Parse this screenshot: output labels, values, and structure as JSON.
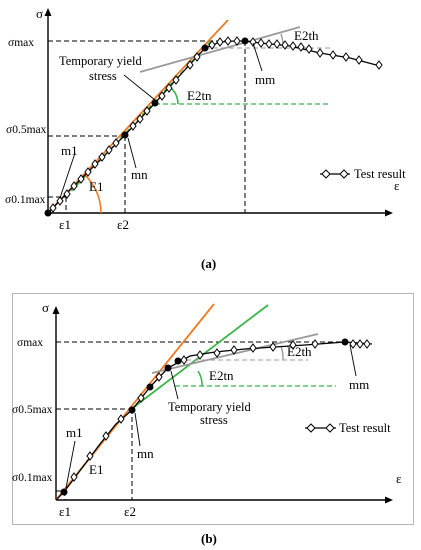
{
  "panel_a": {
    "caption": "(a)",
    "axis_y": "σ",
    "axis_x": "ε",
    "labels": {
      "sigma_max": "σmax",
      "sigma_05max": "σ0.5max",
      "sigma_01max": "σ0.1max",
      "eps1": "ε1",
      "eps2": "ε2",
      "m1": "m1",
      "mn": "mn",
      "mm": "mm",
      "E1": "E1",
      "E2tn": "E2tn",
      "E2th": "E2th",
      "temp_yield_line1": "Temporary yield",
      "temp_yield_line2": "stress",
      "legend": "Test result"
    }
  },
  "panel_b": {
    "caption": "(b)",
    "axis_y": "σ",
    "axis_x": "ε",
    "labels": {
      "sigma_max": "σmax",
      "sigma_05max": "σ0.5max",
      "sigma_01max": "σ0.1max",
      "eps1": "ε1",
      "eps2": "ε2",
      "m1": "m1",
      "mn": "mn",
      "mm": "mm",
      "E1": "E1",
      "E2tn": "E2tn",
      "E2th": "E2th",
      "temp_yield_line1": "Temporary yield",
      "temp_yield_line2": "stress",
      "legend": "Test result"
    }
  },
  "colors": {
    "test_curve": "#000000",
    "tangent_E1": "#f07a24",
    "tangent_E2tn": "#39b54a",
    "tangent_E2th": "#9a9a9a",
    "guide_dashed": "#000000",
    "frame_b": "#b5b5b5"
  }
}
